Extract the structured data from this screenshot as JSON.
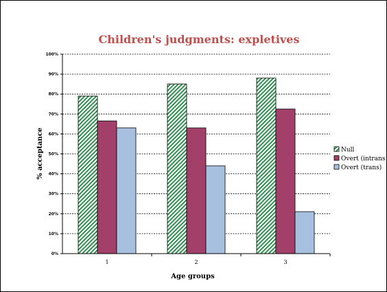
{
  "chart_data": {
    "type": "bar",
    "title": "Children's judgments: expletives",
    "xlabel": "Age groups",
    "ylabel": "% acceptance",
    "categories": [
      "1",
      "2",
      "3"
    ],
    "ylim": [
      0,
      100
    ],
    "y_ticks": [
      "0%",
      "10%",
      "20%",
      "30%",
      "40%",
      "50%",
      "60%",
      "70%",
      "80%",
      "90%",
      "100%"
    ],
    "grid": "horizontal dashed",
    "legend_position": "right",
    "series": [
      {
        "name": "Null",
        "values": [
          79,
          85,
          88
        ],
        "color": "#b8e0b8",
        "pattern": "diagonal-hatch"
      },
      {
        "name": "Overt (intrans",
        "values": [
          66.5,
          63,
          72.5
        ],
        "color": "#a3406a"
      },
      {
        "name": "Overt (trans)",
        "values": [
          63,
          44,
          21
        ],
        "color": "#a8c0e0"
      }
    ],
    "title_color": "#c0504d"
  }
}
